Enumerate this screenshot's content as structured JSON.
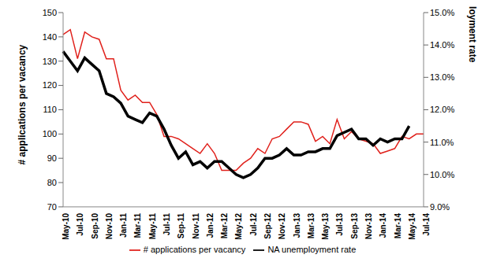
{
  "chart_data": {
    "type": "line",
    "categories": [
      "May-10",
      null,
      "Jul-10",
      null,
      "Sep-10",
      null,
      "Nov-10",
      null,
      "Jan-11",
      null,
      "Mar-11",
      null,
      "May-11",
      null,
      "Jul-11",
      null,
      "Sep-11",
      null,
      "Nov-11",
      null,
      "Jan-12",
      null,
      "Mar-12",
      null,
      "May-12",
      null,
      "Jul-12",
      null,
      "Sep-12",
      null,
      "Nov-12",
      null,
      "Jan-13",
      null,
      "Mar-13",
      null,
      "May-13",
      null,
      "Jul-13",
      null,
      "Sep-13",
      null,
      "Nov-13",
      null,
      "Jan-14",
      null,
      "Mar-14",
      null,
      "May-14",
      null,
      "Jul-14"
    ],
    "series": [
      {
        "name": "# applications per vacancy",
        "color": "#e0201b",
        "line_style": "solid",
        "values": [
          141,
          143,
          131,
          142,
          140,
          139,
          131,
          131,
          118,
          114,
          116,
          113,
          113,
          108,
          99,
          99,
          98,
          96,
          94,
          92,
          96,
          92,
          85,
          85,
          85,
          88,
          90,
          94,
          92,
          98,
          99,
          102,
          105,
          105,
          104,
          97,
          99,
          96,
          106,
          98,
          101,
          98,
          97,
          96,
          92,
          93,
          94,
          99,
          98,
          100,
          100
        ]
      },
      {
        "name": "NA unemployment rate",
        "color": "#000000",
        "line_style": "solid",
        "axis": "y2",
        "values": [
          13.8,
          13.5,
          13.2,
          13.6,
          13.4,
          13.2,
          12.5,
          12.4,
          12.2,
          11.8,
          11.7,
          11.6,
          11.9,
          11.8,
          11.4,
          10.9,
          10.5,
          10.7,
          10.3,
          10.4,
          10.2,
          10.4,
          10.4,
          10.2,
          10.0,
          9.9,
          10.0,
          10.2,
          10.5,
          10.5,
          10.6,
          10.8,
          10.6,
          10.6,
          10.7,
          10.7,
          10.8,
          10.8,
          11.2,
          11.3,
          11.4,
          11.1,
          11.1,
          10.9,
          11.1,
          11.0,
          11.1,
          11.1,
          11.5,
          null,
          null
        ]
      }
    ],
    "y_label": "# applications  per vacancy",
    "y2_label": "NA unemployment rate",
    "ylim": [
      70,
      150
    ],
    "yticks": [
      70,
      80,
      90,
      100,
      110,
      120,
      130,
      140,
      150
    ],
    "y2lim": [
      9,
      15
    ],
    "y2ticks": [
      {
        "value": 9,
        "label": "9.0%"
      },
      {
        "value": 10,
        "label": "10.0%"
      },
      {
        "value": 11,
        "label": "11.0%"
      },
      {
        "value": 12,
        "label": "12.0%"
      },
      {
        "value": 13,
        "label": "13.0%"
      },
      {
        "value": 14,
        "label": "14.0%"
      },
      {
        "value": 15,
        "label": "15.0%"
      }
    ],
    "grid": false,
    "legend": "bottom"
  }
}
